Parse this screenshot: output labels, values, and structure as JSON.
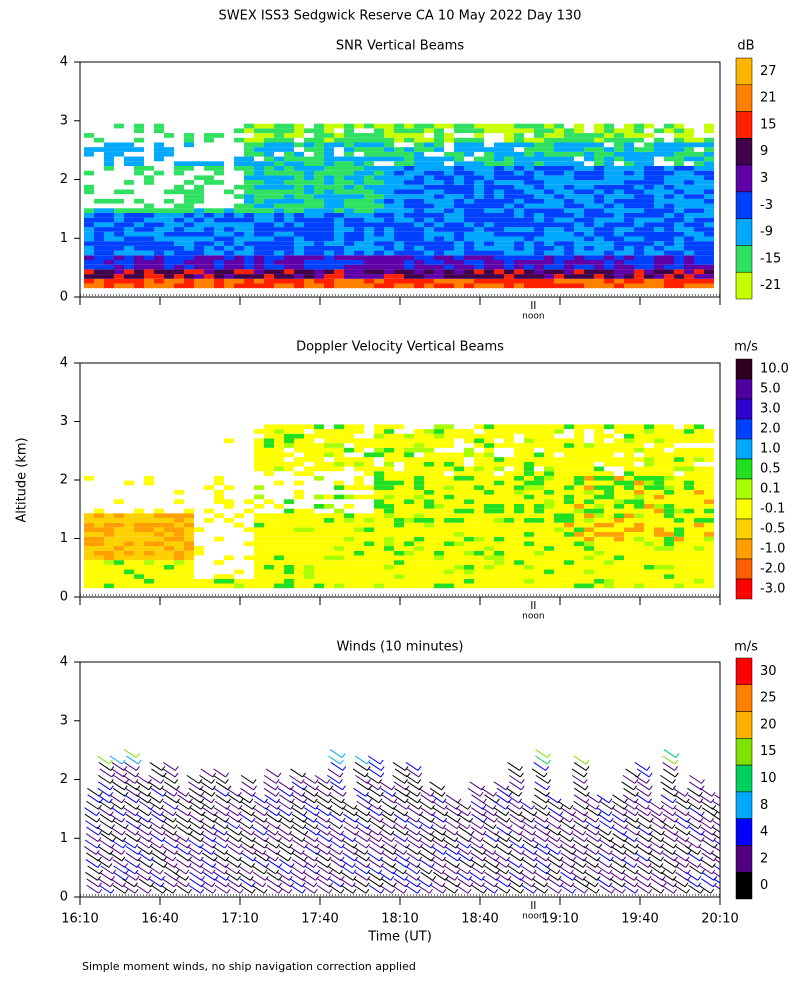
{
  "title": "SWEX ISS3 Sedgwick Reserve CA  10 May 2022 Day 130",
  "y_label": "Altitude (km)",
  "x_label": "Time (UT)",
  "footnote": "Simple moment winds, no ship navigation correction applied",
  "noon_label": "noon",
  "chart_data": [
    {
      "type": "heatmap",
      "title": "SNR Vertical Beams",
      "unit": "dB",
      "ylim": [
        0,
        4
      ],
      "yticks": [
        0,
        1,
        2,
        3,
        4
      ],
      "colorbar": {
        "levels": [
          27,
          21,
          15,
          9,
          3,
          -3,
          -9,
          -15,
          -21
        ],
        "colors": [
          "#ffb400",
          "#ff8000",
          "#ff2000",
          "#40004a",
          "#6000a8",
          "#0040ff",
          "#00a8ff",
          "#30e060",
          "#c8ff00"
        ]
      }
    },
    {
      "type": "heatmap",
      "title": "Doppler Velocity Vertical Beams",
      "unit": "m/s",
      "ylim": [
        0,
        4
      ],
      "yticks": [
        0,
        1,
        2,
        3,
        4
      ],
      "colorbar": {
        "levels": [
          {
            "value": 10,
            "label": "10.0"
          },
          {
            "value": 5,
            "label": "5.0"
          },
          {
            "value": 3,
            "label": "3.0"
          },
          {
            "value": 2,
            "label": "2.0"
          },
          {
            "value": 1,
            "label": "1.0"
          },
          0.5,
          0.1,
          -0.1,
          -0.5,
          {
            "value": -1,
            "label": "-1.0"
          },
          {
            "value": -2,
            "label": "-2.0"
          },
          {
            "value": -3,
            "label": "-3.0"
          }
        ],
        "colors": [
          "#300020",
          "#5000a0",
          "#3000d0",
          "#0040ff",
          "#00a8ff",
          "#20e020",
          "#a8ff00",
          "#ffff00",
          "#ffd000",
          "#ffa000",
          "#ff6000",
          "#ff0000"
        ]
      }
    },
    {
      "type": "barbs",
      "title": "Winds (10 minutes)",
      "unit": "m/s",
      "ylim": [
        0,
        4
      ],
      "yticks": [
        0,
        1,
        2,
        3,
        4
      ],
      "categories": [
        "16:10",
        "16:40",
        "17:10",
        "17:40",
        "18:10",
        "18:40",
        "19:10",
        "19:40",
        "20:10"
      ],
      "colorbar": {
        "levels": [
          30,
          25,
          20,
          15,
          10,
          8,
          4,
          2,
          0
        ],
        "colors": [
          "#ff0000",
          "#ff8000",
          "#ffb000",
          "#80e000",
          "#00d060",
          "#00a8ff",
          "#0000ff",
          "#500080",
          "#000000"
        ]
      }
    }
  ]
}
